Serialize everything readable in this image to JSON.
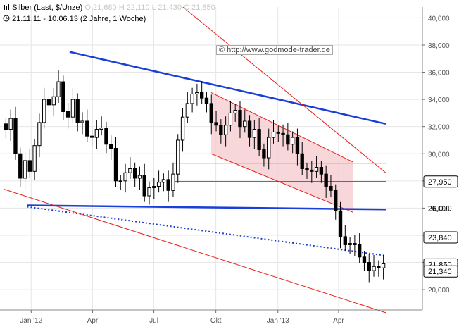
{
  "header": {
    "title": "Silber (Last, $/Unze)",
    "stats": "O 21,680  H 22,110  L 21,430  C 21,850",
    "period": "21.11.11 - 10.06.13 (2 Jahre, 1 Woche)"
  },
  "watermark": "© http://www.godmode-trader.de",
  "colors": {
    "candle": "#000000",
    "support_line": "#1a3fd6",
    "trend_line": "#e8201a",
    "channel_fill": "#f6c9cf",
    "grid": "#e6e6e6",
    "level_line": "#888888"
  },
  "chart_data": {
    "type": "candlestick",
    "instrument": "Silber",
    "unit": "$/Unze",
    "x_start": "2011-11-21",
    "x_end": "2013-06-10",
    "interval": "weekly",
    "y_ticks": [
      20000,
      22000,
      24000,
      26000,
      28000,
      30000,
      32000,
      34000,
      36000,
      38000,
      40000
    ],
    "y_tick_labels": [
      "20,000",
      "22,000",
      "24,000",
      "26,000",
      "28,000",
      "30,000",
      "32,000",
      "34,000",
      "36,000",
      "38,000",
      "40,000"
    ],
    "ylim": [
      18500,
      40800
    ],
    "x_ticks": [
      {
        "date": "2012-01-01",
        "label": "Jan '12"
      },
      {
        "date": "2012-04-01",
        "label": "Apr"
      },
      {
        "date": "2012-07-01",
        "label": "Jul"
      },
      {
        "date": "2012-10-01",
        "label": "Okt"
      },
      {
        "date": "2013-01-01",
        "label": "Jan '13"
      },
      {
        "date": "2013-04-01",
        "label": "Apr"
      }
    ],
    "closes": [
      31.8,
      32.6,
      30.0,
      28.2,
      29.5,
      28.7,
      30.6,
      32.3,
      34.0,
      33.6,
      34.2,
      35.3,
      33.1,
      32.7,
      34.0,
      32.3,
      32.4,
      31.3,
      31.2,
      31.8,
      31.9,
      30.7,
      30.4,
      28.0,
      28.0,
      28.6,
      28.9,
      28.2,
      28.4,
      26.9,
      27.5,
      27.6,
      27.9,
      28.1,
      27.3,
      28.5,
      31.0,
      32.7,
      33.7,
      34.4,
      34.5,
      34.1,
      33.7,
      32.3,
      32.1,
      31.4,
      32.1,
      33.0,
      33.2,
      32.0,
      32.4,
      31.2,
      31.8,
      30.3,
      29.7,
      31.2,
      31.6,
      31.5,
      31.4,
      30.7,
      31.2,
      30.0,
      28.9,
      28.8,
      28.7,
      29.0,
      28.5,
      27.6,
      27.3,
      25.8,
      23.9,
      23.3,
      23.4,
      23.3,
      22.4,
      22.0,
      21.4,
      21.7,
      21.6,
      21.9
    ],
    "annotation_lines": [
      {
        "name": "Abwärtstrend blau",
        "from": [
          "2012-02-27",
          37500
        ],
        "to": [
          "2013-06-10",
          32200
        ]
      },
      {
        "name": "Unterstützung blau",
        "from": [
          "2011-12-26",
          26200
        ],
        "to": [
          "2013-06-10",
          25900
        ]
      },
      {
        "name": "Trendlinie gepunktet",
        "from": [
          "2011-12-26",
          26100
        ],
        "to": [
          "2013-06-10",
          22500
        ]
      },
      {
        "name": "Trendkanal oben",
        "from": [
          "2012-08-13",
          40800
        ],
        "to": [
          "2013-06-10",
          28600
        ]
      },
      {
        "name": "Trendkanal unten",
        "from": [
          "2011-11-21",
          27400
        ],
        "to": [
          "2013-06-10",
          18300
        ]
      },
      {
        "name": "Level 29,3",
        "from": [
          "2012-07-30",
          29300
        ],
        "to": [
          "2013-06-10",
          29300
        ]
      },
      {
        "name": "Level 27,95",
        "from": [
          "2012-07-30",
          27950
        ],
        "to": [
          "2013-06-10",
          27950
        ]
      }
    ],
    "highlight_channel": {
      "from_date": "2012-09-24",
      "to_date": "2013-04-22",
      "upper": [
        34500,
        29400
      ],
      "lower": [
        30000,
        25700
      ]
    },
    "price_labels": [
      {
        "label": "27,950",
        "value": 27950,
        "style": "outline"
      },
      {
        "label": "26,000",
        "value": 26000,
        "style": "tick"
      },
      {
        "label": "23,840",
        "value": 23840,
        "style": "outline"
      },
      {
        "label": "21,850",
        "value": 21850,
        "style": "outline"
      },
      {
        "label": "21,340",
        "value": 21340,
        "style": "outline"
      }
    ]
  }
}
